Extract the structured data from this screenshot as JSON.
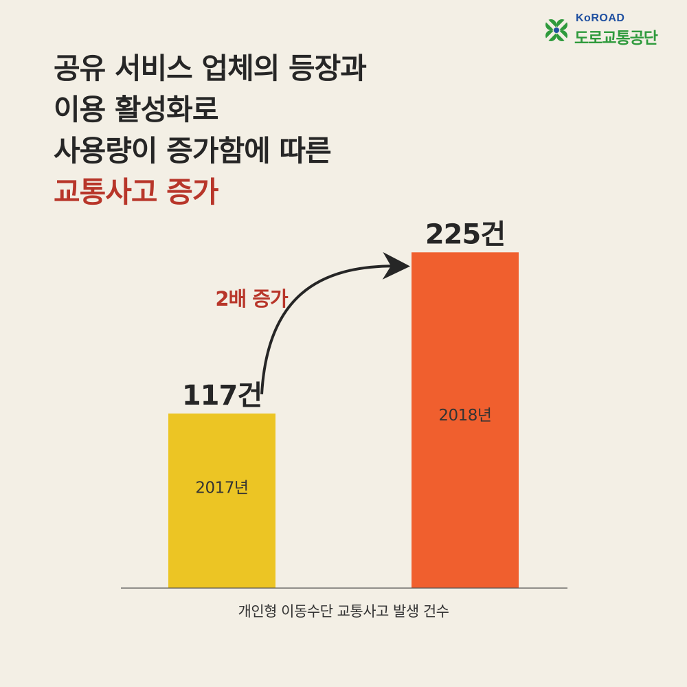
{
  "logo": {
    "en": "KoROAD",
    "ko": "도로교통공단",
    "brand_green": "#2e9a3c",
    "brand_blue": "#1e4fa0"
  },
  "headline": {
    "lines": [
      "공유 서비스 업체의 등장과",
      "이용 활성화로",
      "사용량이 증가함에 따른"
    ],
    "highlight": "교통사고 증가",
    "highlight_color": "#b8362a"
  },
  "chart_data": {
    "type": "bar",
    "categories": [
      "2017년",
      "2018년"
    ],
    "values": [
      117,
      225
    ],
    "value_labels": [
      "117건",
      "225건"
    ],
    "colors": [
      "#ecc524",
      "#f05f2e"
    ],
    "ylim": [
      0,
      250
    ],
    "annotation": {
      "text": "2배 증가",
      "from": "2017년",
      "to": "2018년",
      "color": "#b8362a"
    },
    "xlabel": "개인형 이동수단 교통사고 발생 건수",
    "grid": false
  }
}
